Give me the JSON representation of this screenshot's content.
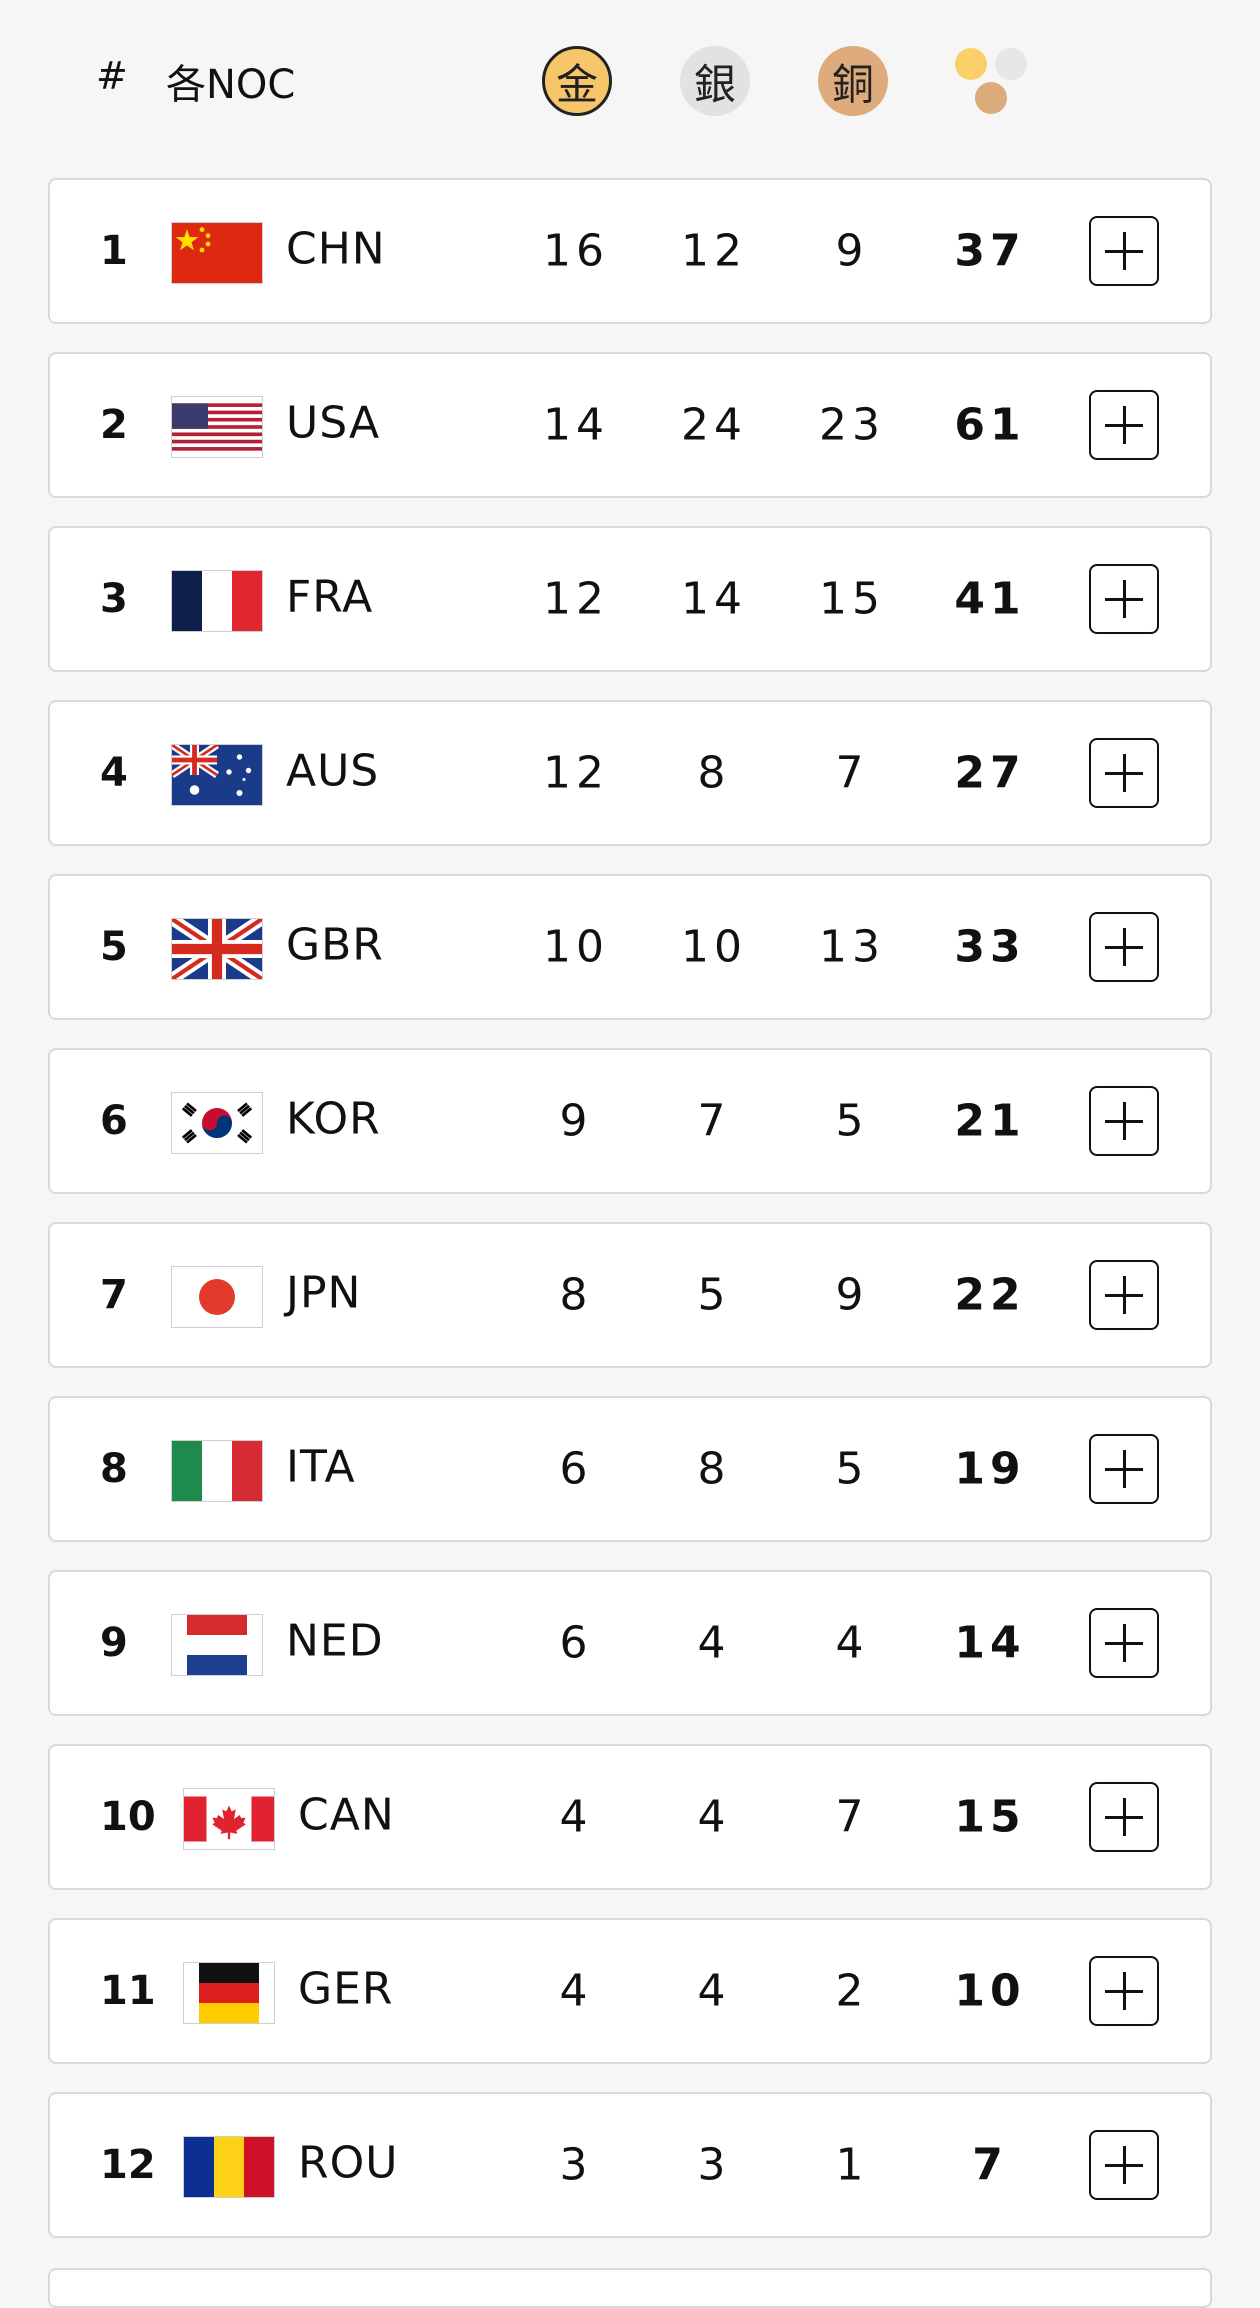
{
  "header": {
    "rank_label": "#",
    "noc_label": "各NOC",
    "gold_icon_text": "金",
    "silver_icon_text": "銀",
    "bronze_icon_text": "銅",
    "total_icon": "medal-total-icon"
  },
  "colors": {
    "gold": "#f7c66b",
    "silver": "#e2e2e2",
    "bronze": "#ddab7c"
  },
  "rows": [
    {
      "rank": "1",
      "code": "CHN",
      "flag": "chn",
      "gold": "16",
      "silver": "12",
      "bronze": "9",
      "total": "37"
    },
    {
      "rank": "2",
      "code": "USA",
      "flag": "usa",
      "gold": "14",
      "silver": "24",
      "bronze": "23",
      "total": "61"
    },
    {
      "rank": "3",
      "code": "FRA",
      "flag": "fra",
      "gold": "12",
      "silver": "14",
      "bronze": "15",
      "total": "41"
    },
    {
      "rank": "4",
      "code": "AUS",
      "flag": "aus",
      "gold": "12",
      "silver": "8",
      "bronze": "7",
      "total": "27"
    },
    {
      "rank": "5",
      "code": "GBR",
      "flag": "gbr",
      "gold": "10",
      "silver": "10",
      "bronze": "13",
      "total": "33"
    },
    {
      "rank": "6",
      "code": "KOR",
      "flag": "kor",
      "gold": "9",
      "silver": "7",
      "bronze": "5",
      "total": "21"
    },
    {
      "rank": "7",
      "code": "JPN",
      "flag": "jpn",
      "gold": "8",
      "silver": "5",
      "bronze": "9",
      "total": "22"
    },
    {
      "rank": "8",
      "code": "ITA",
      "flag": "ita",
      "gold": "6",
      "silver": "8",
      "bronze": "5",
      "total": "19"
    },
    {
      "rank": "9",
      "code": "NED",
      "flag": "ned",
      "gold": "6",
      "silver": "4",
      "bronze": "4",
      "total": "14"
    },
    {
      "rank": "10",
      "code": "CAN",
      "flag": "can",
      "gold": "4",
      "silver": "4",
      "bronze": "7",
      "total": "15"
    },
    {
      "rank": "11",
      "code": "GER",
      "flag": "ger",
      "gold": "4",
      "silver": "4",
      "bronze": "2",
      "total": "10"
    },
    {
      "rank": "12",
      "code": "ROU",
      "flag": "rou",
      "gold": "3",
      "silver": "3",
      "bronze": "1",
      "total": "7"
    }
  ]
}
